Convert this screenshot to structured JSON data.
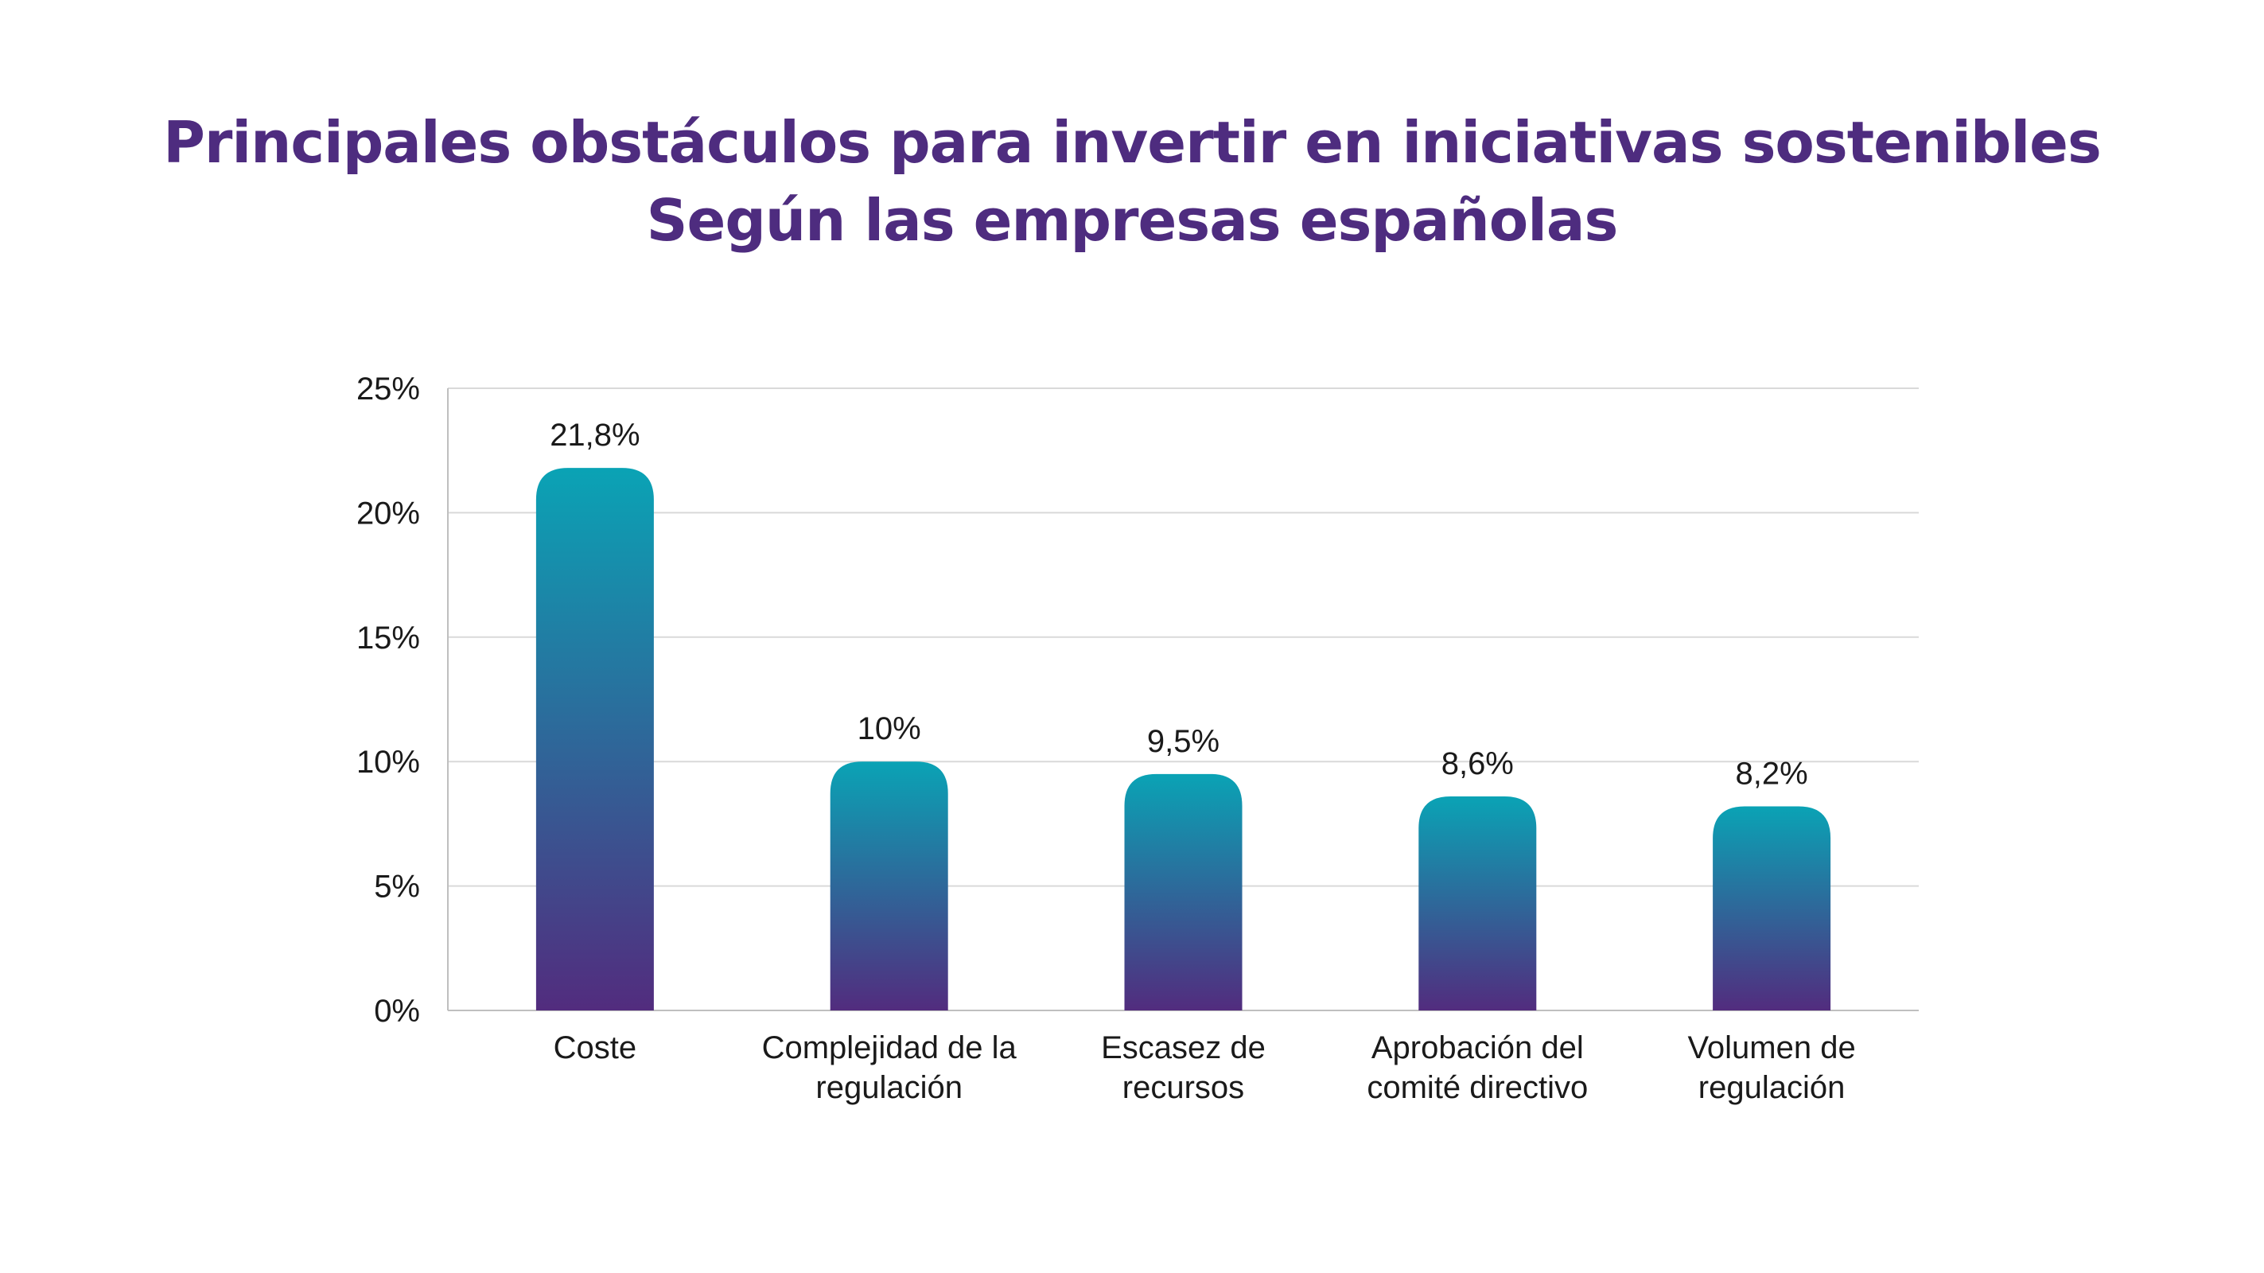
{
  "chart_data": {
    "type": "bar",
    "title": "Principales obstáculos para invertir en iniciativas sostenibles",
    "subtitle": "Según las empresas españolas",
    "categories": [
      [
        "Coste"
      ],
      [
        "Complejidad de la",
        "regulación"
      ],
      [
        "Escasez de",
        "recursos"
      ],
      [
        "Aprobación del",
        "comité directivo"
      ],
      [
        "Volumen de",
        "regulación"
      ]
    ],
    "values": [
      21.8,
      10,
      9.5,
      8.6,
      8.2
    ],
    "data_labels": [
      "21,8%",
      "10%",
      "9,5%",
      "8,6%",
      "8,2%"
    ],
    "yticks": [
      0,
      5,
      10,
      15,
      20,
      25
    ],
    "ytick_labels": [
      "0%",
      "5%",
      "10%",
      "15%",
      "20%",
      "25%"
    ],
    "ylim": [
      0,
      25
    ],
    "xlabel": "",
    "ylabel": "",
    "grid": true,
    "legend": "none",
    "colors": {
      "title": "#4e2c7f",
      "bar_top": "#0aa3b5",
      "bar_bottom": "#522c7e",
      "grid": "#d9d9d9",
      "axis": "#bfbfbf",
      "text": "#1a1a1a"
    }
  }
}
